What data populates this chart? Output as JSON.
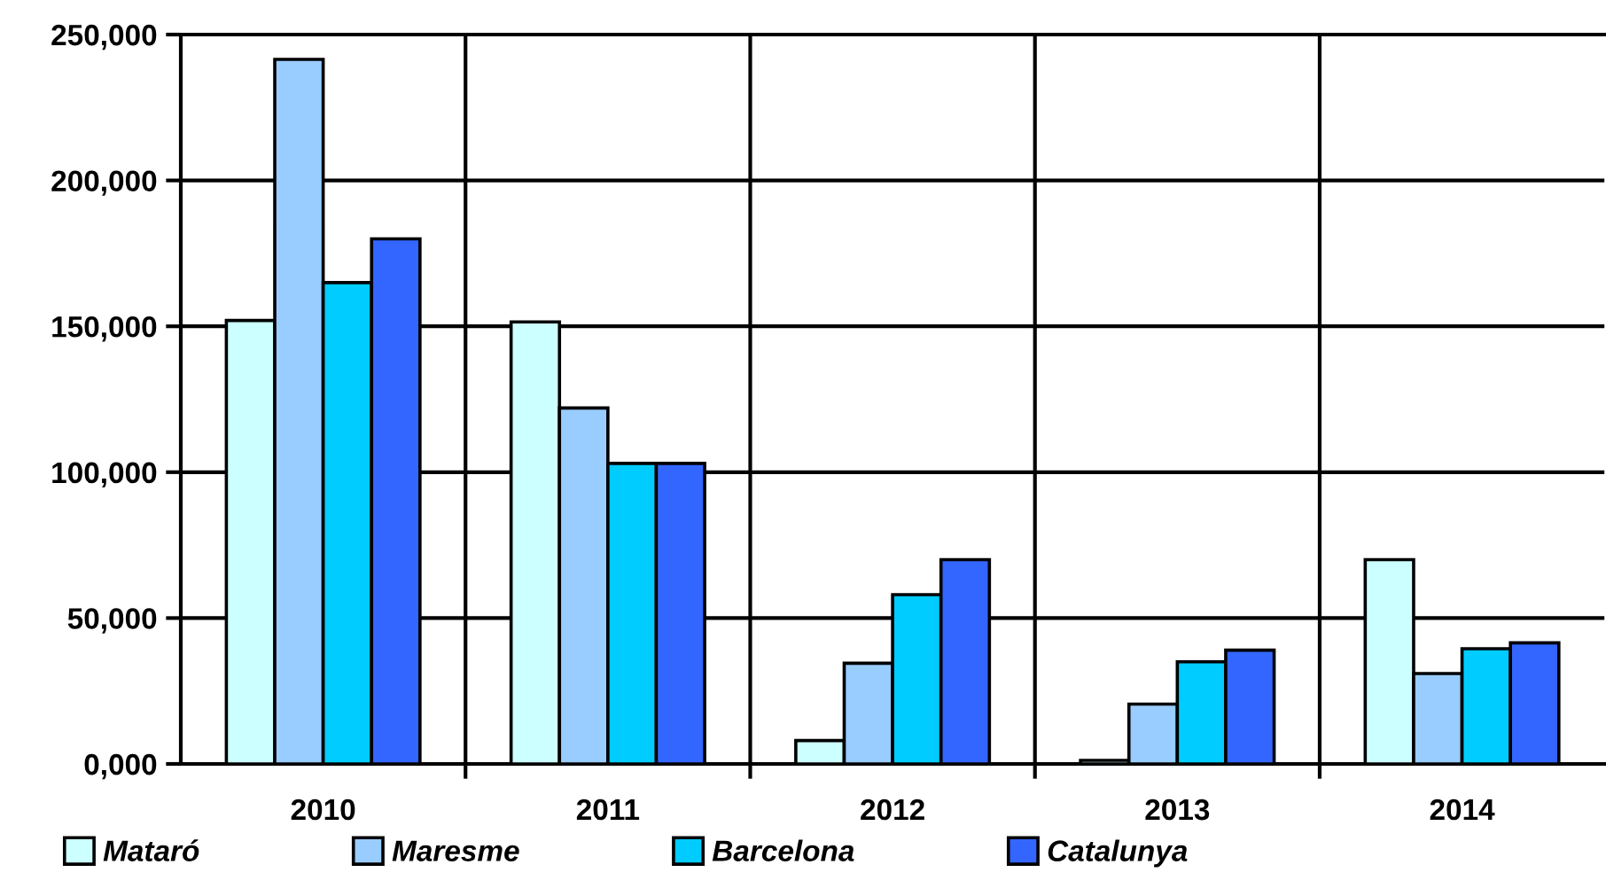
{
  "chart_data": {
    "type": "bar",
    "categories": [
      "2010",
      "2011",
      "2012",
      "2013",
      "2014"
    ],
    "series": [
      {
        "name": "Mataró",
        "color": "#ccffff",
        "values": [
          152000,
          151500,
          8000,
          1200,
          70000
        ]
      },
      {
        "name": "Maresme",
        "color": "#99ccff",
        "values": [
          241500,
          122000,
          34500,
          20500,
          31000
        ]
      },
      {
        "name": "Barcelona",
        "color": "#00ccff",
        "values": [
          165000,
          103000,
          58000,
          35000,
          39500
        ]
      },
      {
        "name": "Catalunya",
        "color": "#3366ff",
        "values": [
          180000,
          103000,
          70000,
          39000,
          41500
        ]
      }
    ],
    "ylim": [
      0,
      250000
    ],
    "yticks": [
      {
        "value": 0,
        "label": "0,000"
      },
      {
        "value": 50000,
        "label": "50,000"
      },
      {
        "value": 100000,
        "label": "100,000"
      },
      {
        "value": 150000,
        "label": "150,000"
      },
      {
        "value": 200000,
        "label": "200,000"
      },
      {
        "value": 250000,
        "label": "250,000"
      }
    ],
    "grid": true,
    "legend": "bottom"
  }
}
